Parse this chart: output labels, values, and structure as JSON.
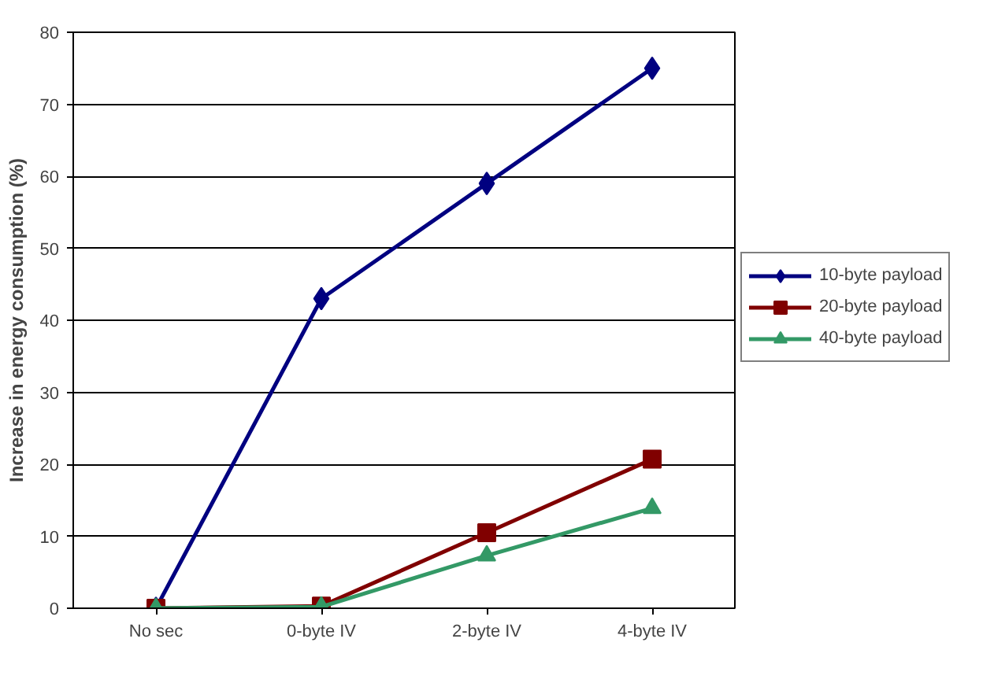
{
  "chart_data": {
    "type": "line",
    "ylabel": "Increase in energy consumption (%)",
    "categories": [
      "No sec",
      "0-byte IV",
      "2-byte IV",
      "4-byte IV"
    ],
    "series": [
      {
        "name": "10-byte payload",
        "color": "#000080",
        "marker": "diamond",
        "values": [
          0,
          43,
          59,
          75
        ]
      },
      {
        "name": "20-byte payload",
        "color": "#800000",
        "marker": "square",
        "values": [
          0,
          0.3,
          10.5,
          20.7
        ]
      },
      {
        "name": "40-byte payload",
        "color": "#339966",
        "marker": "triangle",
        "values": [
          0,
          0.2,
          7.3,
          13.9
        ]
      }
    ],
    "ylim": [
      0,
      80
    ],
    "yticks": [
      0,
      10,
      20,
      30,
      40,
      50,
      60,
      70,
      80
    ],
    "grid": "y",
    "legend": "right",
    "line_style": "solid"
  }
}
